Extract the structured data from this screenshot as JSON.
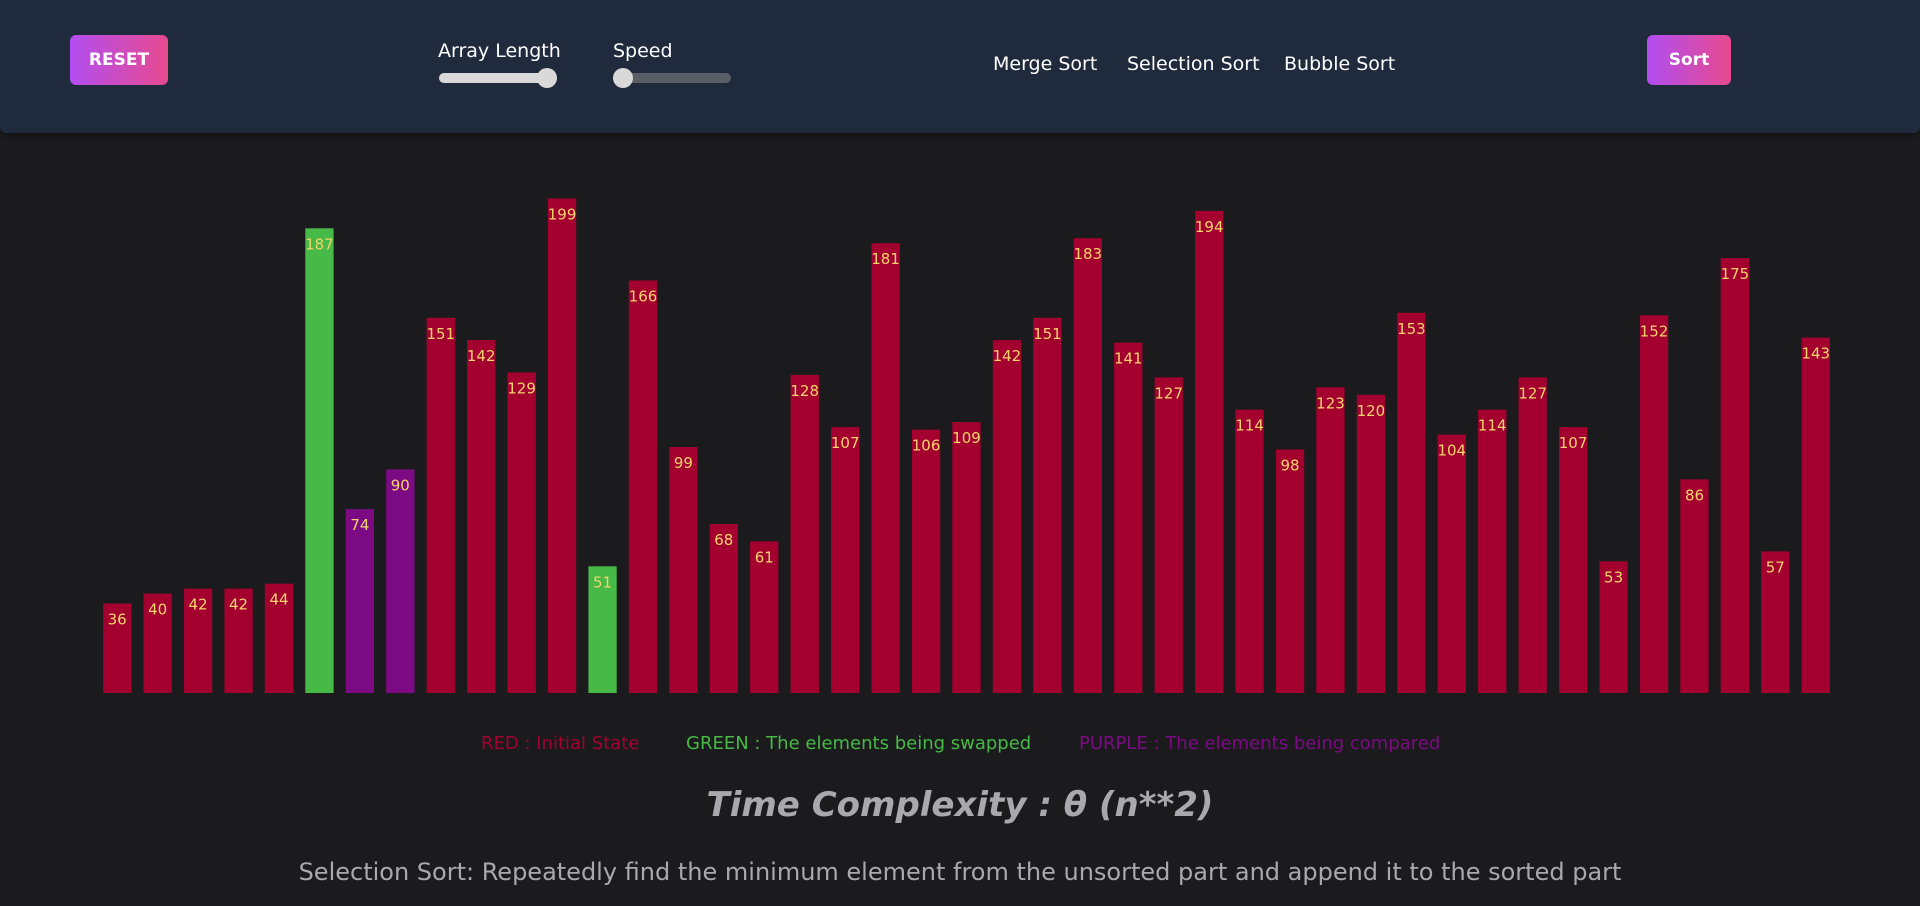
{
  "header": {
    "reset_label": "RESET",
    "sort_label": "Sort",
    "array_length_label": "Array Length",
    "speed_label": "Speed",
    "array_length_value": 1.0,
    "speed_value": 0.0,
    "algorithms": [
      "Merge Sort",
      "Selection Sort",
      "Bubble Sort"
    ]
  },
  "colors": {
    "initial": "#a3002f",
    "swapped": "#46b946",
    "compared": "#7d0a85",
    "label": "#f3d56b"
  },
  "chart_data": {
    "type": "bar",
    "values": [
      36,
      40,
      42,
      42,
      44,
      187,
      74,
      90,
      151,
      142,
      129,
      199,
      51,
      166,
      99,
      68,
      61,
      128,
      107,
      181,
      106,
      109,
      142,
      151,
      183,
      141,
      127,
      194,
      114,
      98,
      123,
      120,
      153,
      104,
      114,
      127,
      107,
      53,
      152,
      86,
      175,
      57,
      143
    ],
    "states": [
      "initial",
      "initial",
      "initial",
      "initial",
      "initial",
      "swapped",
      "compared",
      "compared",
      "initial",
      "initial",
      "initial",
      "initial",
      "swapped",
      "initial",
      "initial",
      "initial",
      "initial",
      "initial",
      "initial",
      "initial",
      "initial",
      "initial",
      "initial",
      "initial",
      "initial",
      "initial",
      "initial",
      "initial",
      "initial",
      "initial",
      "initial",
      "initial",
      "initial",
      "initial",
      "initial",
      "initial",
      "initial",
      "initial",
      "initial",
      "initial",
      "initial",
      "initial",
      "initial"
    ],
    "ylim": [
      0,
      200
    ]
  },
  "legend": {
    "red": "RED : Initial State",
    "green": "GREEN : The elements being swapped",
    "purple": "PURPLE : The elements being compared"
  },
  "complexity": "Time Complexity : θ (n**2)",
  "description": "Selection Sort: Repeatedly find the minimum element from the unsorted part and append it to the sorted part"
}
